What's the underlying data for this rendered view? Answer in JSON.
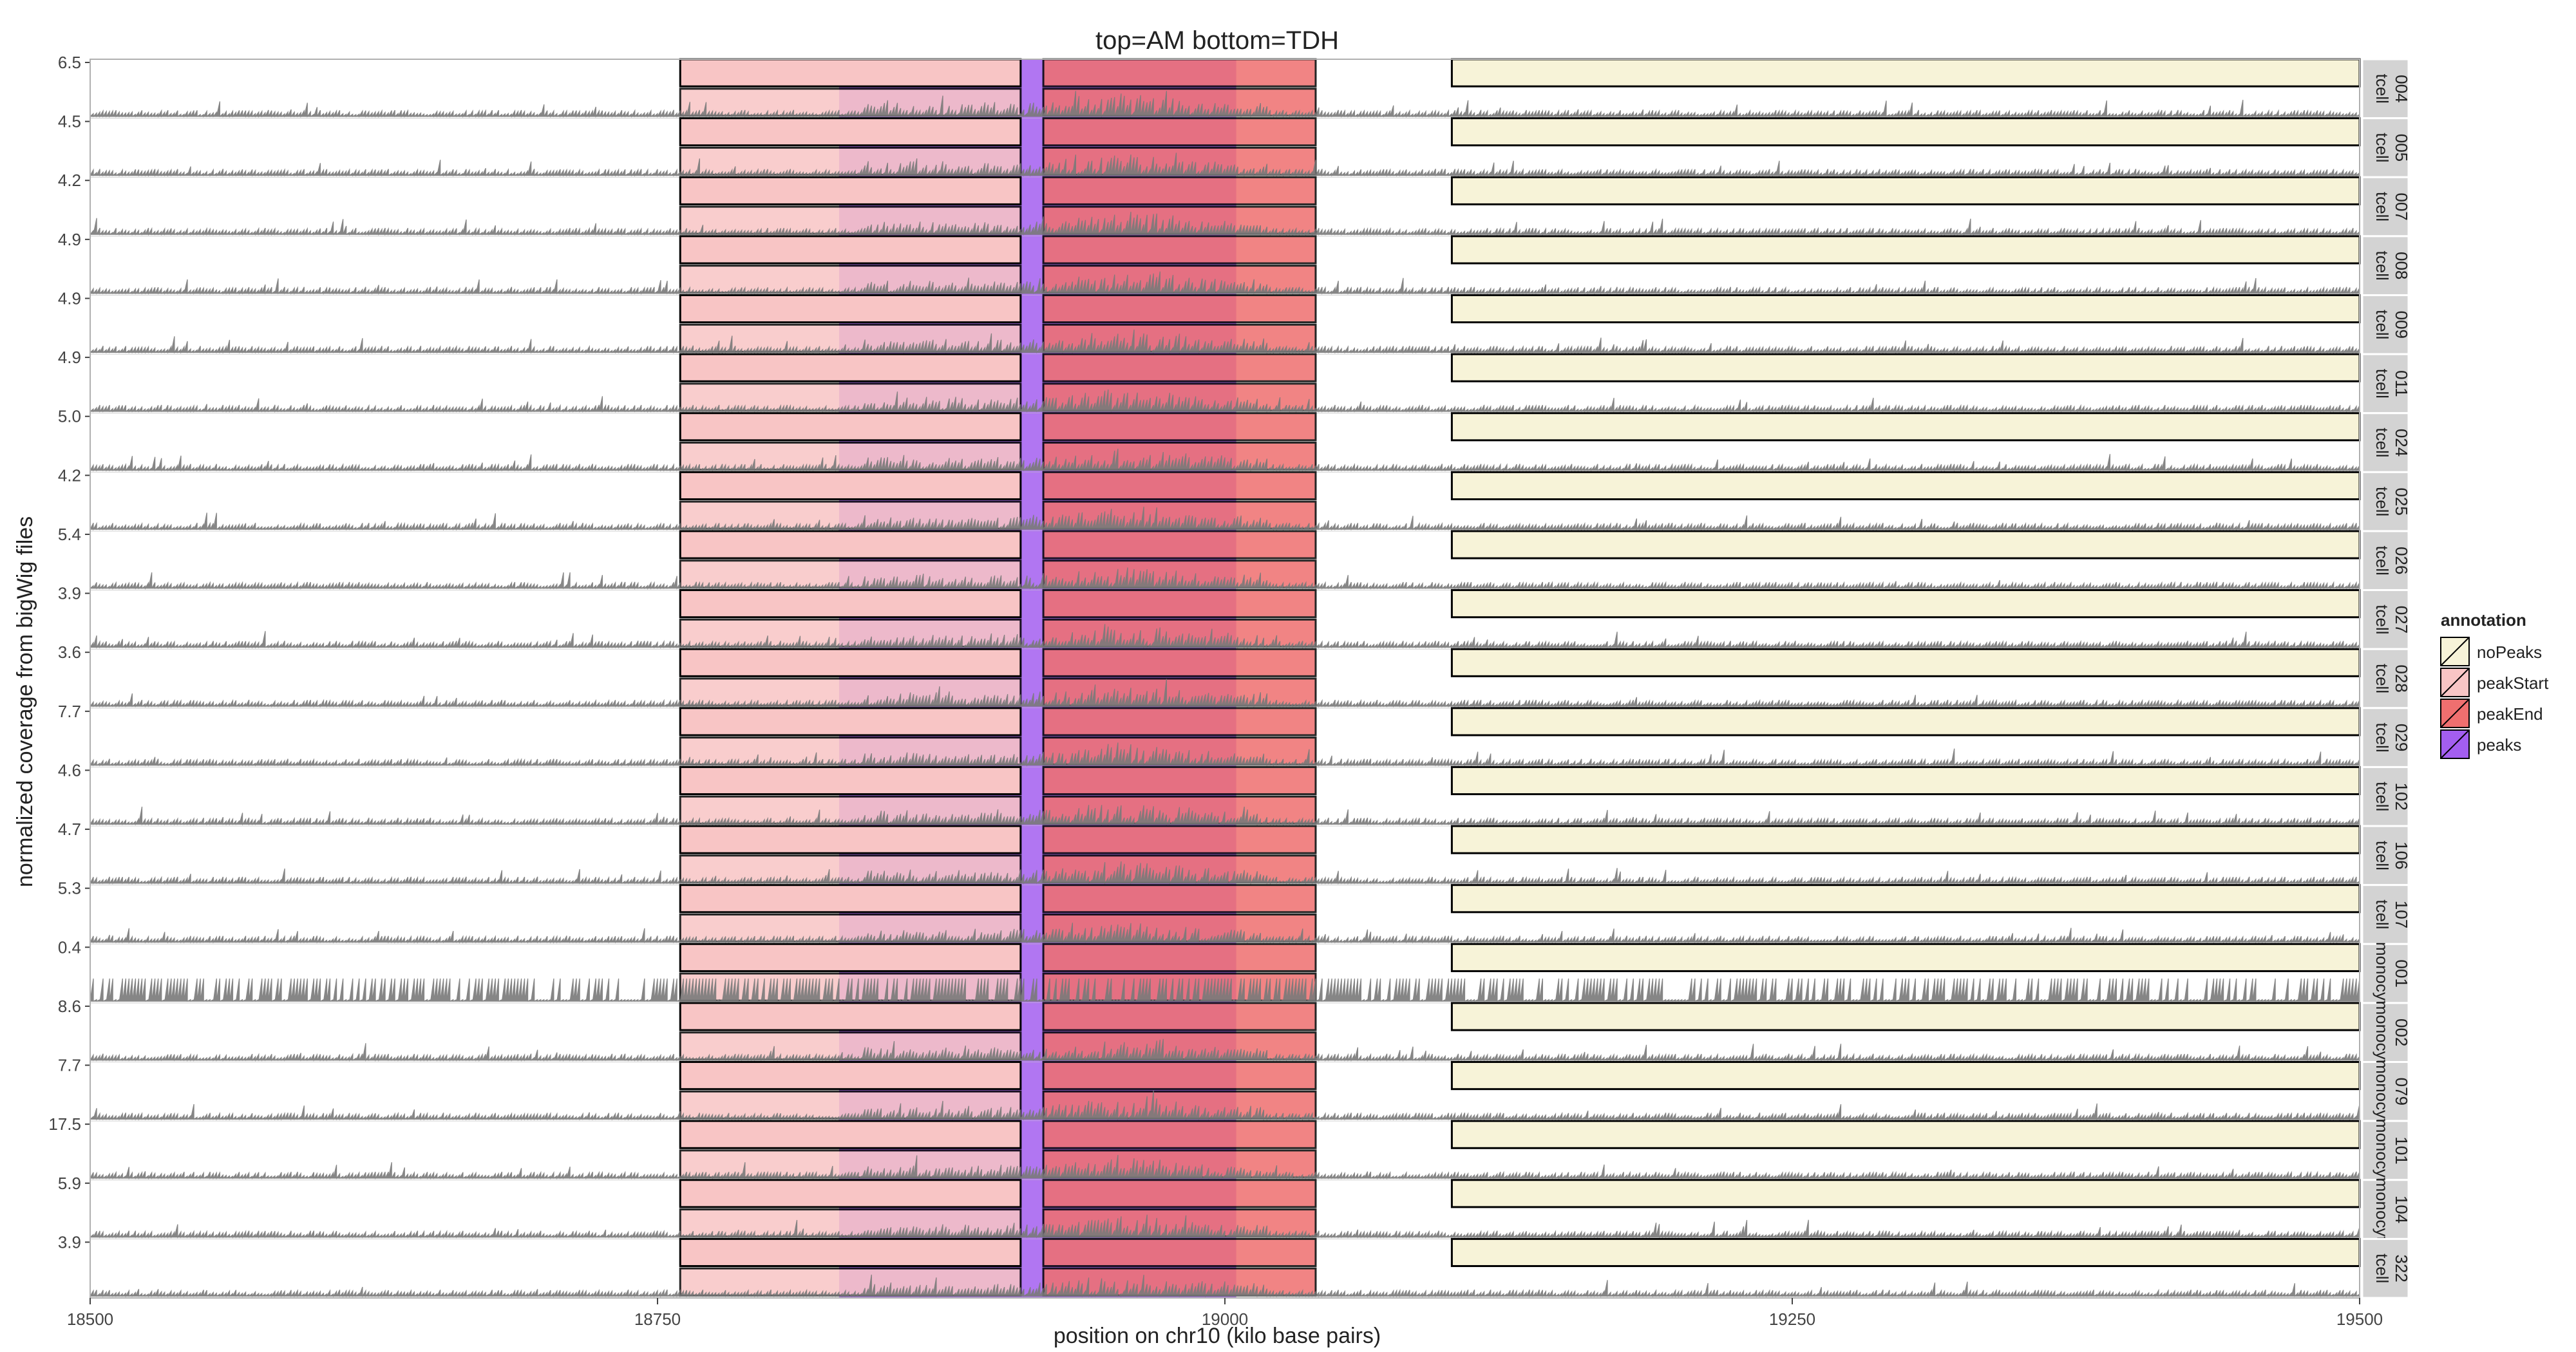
{
  "colors": {
    "noPeaks": "#f7f3d8",
    "peakStart": "#f8c5c5",
    "peakEnd": "#ef6f6f",
    "peaks": "#a35ef0",
    "signal": "#7a7a7a",
    "strip": "#d3d3d3",
    "grid": "#ececec"
  },
  "chart_data": {
    "type": "area",
    "title": "top=AM bottom=TDH",
    "xlabel": "position on chr10 (kilo base pairs)",
    "ylabel": "normalized coverage from bigWig files",
    "xlim": [
      18500,
      19500
    ],
    "xticks": [
      18500,
      18750,
      19000,
      19250,
      19500
    ],
    "xtick_labels": [
      "18500",
      "18750",
      "19000",
      "19250",
      "19500"
    ],
    "legend": {
      "title": "annotation",
      "position": "right",
      "entries": [
        "noPeaks",
        "peakStart",
        "peakEnd",
        "peaks"
      ]
    },
    "annotations_top": [
      {
        "label": "peakStart",
        "start": 18760,
        "end": 18910
      },
      {
        "label": "peakEnd",
        "start": 18920,
        "end": 19040
      },
      {
        "label": "noPeaks",
        "start": 19100,
        "end": 19500
      }
    ],
    "peaks_region": {
      "label": "peaks",
      "start": 18830,
      "end": 19005
    },
    "panels": [
      {
        "sample": "004",
        "group": "tcell",
        "ymax": "6.5"
      },
      {
        "sample": "005",
        "group": "tcell",
        "ymax": "4.5"
      },
      {
        "sample": "007",
        "group": "tcell",
        "ymax": "4.2"
      },
      {
        "sample": "008",
        "group": "tcell",
        "ymax": "4.9"
      },
      {
        "sample": "009",
        "group": "tcell",
        "ymax": "4.9"
      },
      {
        "sample": "011",
        "group": "tcell",
        "ymax": "4.9"
      },
      {
        "sample": "024",
        "group": "tcell",
        "ymax": "5.0"
      },
      {
        "sample": "025",
        "group": "tcell",
        "ymax": "4.2"
      },
      {
        "sample": "026",
        "group": "tcell",
        "ymax": "5.4"
      },
      {
        "sample": "027",
        "group": "tcell",
        "ymax": "3.9"
      },
      {
        "sample": "028",
        "group": "tcell",
        "ymax": "3.6"
      },
      {
        "sample": "029",
        "group": "tcell",
        "ymax": "7.7"
      },
      {
        "sample": "102",
        "group": "tcell",
        "ymax": "4.6"
      },
      {
        "sample": "106",
        "group": "tcell",
        "ymax": "4.7"
      },
      {
        "sample": "107",
        "group": "tcell",
        "ymax": "5.3"
      },
      {
        "sample": "001",
        "group": "monocyt",
        "ymax": "0.4"
      },
      {
        "sample": "002",
        "group": "monocyt",
        "ymax": "8.6"
      },
      {
        "sample": "079",
        "group": "monocyt",
        "ymax": "7.7"
      },
      {
        "sample": "101",
        "group": "monocyt",
        "ymax": "17.5"
      },
      {
        "sample": "104",
        "group": "monocyt",
        "ymax": "5.9"
      },
      {
        "sample": "322",
        "group": "tcell",
        "ymax": "3.9"
      }
    ]
  }
}
